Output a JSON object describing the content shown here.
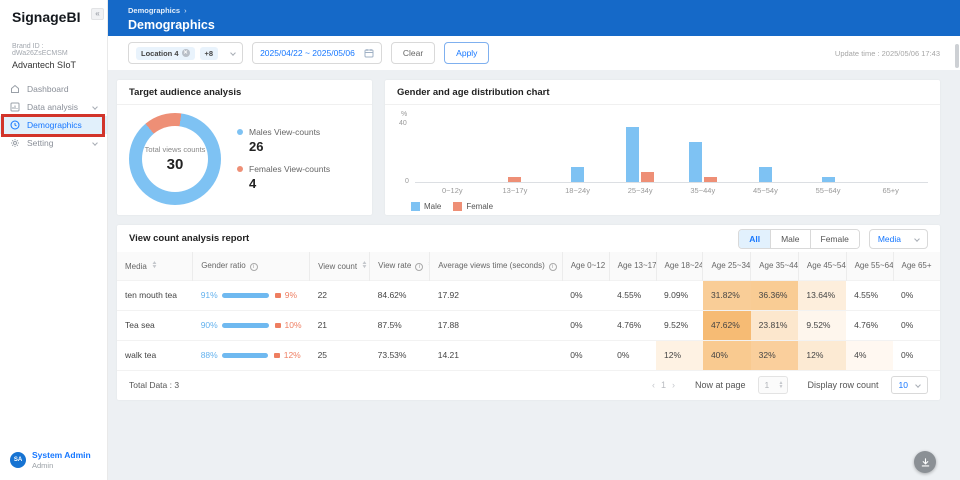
{
  "colors": {
    "header_blue": "#1569c8",
    "link_blue": "#1677ff",
    "male": "#7ec2f3",
    "female": "#ee8f76",
    "annotation_red": "#d2342a"
  },
  "sidebar": {
    "app_title": "SignageBI",
    "collapse_glyph": "«",
    "brand_id": "Brand ID : dWa26ZsECMSM",
    "brand_name": "Advantech SIoT",
    "items": [
      {
        "label": "Dashboard"
      },
      {
        "label": "Data analysis"
      },
      {
        "label": "Demographics"
      },
      {
        "label": "Setting"
      }
    ],
    "user": {
      "initials": "SA",
      "name": "System Admin",
      "role": "Admin"
    }
  },
  "header": {
    "breadcrumb": "Demographics",
    "breadcrumb_sep": "›",
    "title": "Demographics"
  },
  "filters": {
    "location_tag": "Location 4",
    "more_tag": "+8",
    "date_range": "2025/04/22 ~ 2025/05/06",
    "clear_label": "Clear",
    "apply_label": "Apply",
    "update_time": "Update time : 2025/05/06 17:43"
  },
  "audience_card": {
    "title": "Target audience analysis",
    "donut": {
      "center_label": "Total views counts",
      "total": "30",
      "male_pct": 86.7,
      "female_pct": 13.3
    },
    "legend": [
      {
        "label": "Males View-counts",
        "value": "26",
        "color": "#7ec2f3"
      },
      {
        "label": "Females View-counts",
        "value": "4",
        "color": "#ee8f76"
      }
    ]
  },
  "chart_card": {
    "title": "Gender and age distribution chart"
  },
  "chart_data": {
    "type": "bar",
    "title": "Gender and age distribution chart",
    "categories": [
      "0~12y",
      "13~17y",
      "18~24y",
      "25~34y",
      "35~44y",
      "45~54y",
      "55~64y",
      "65+y"
    ],
    "series": [
      {
        "name": "Male",
        "color": "#7ec2f3",
        "values": [
          0,
          0,
          10,
          36.7,
          26.7,
          10,
          3.3,
          0
        ]
      },
      {
        "name": "Female",
        "color": "#ee8f76",
        "values": [
          0,
          3.3,
          0,
          6.7,
          3.3,
          0,
          0,
          0
        ]
      }
    ],
    "ylabel": "%",
    "ylim": [
      0,
      40
    ],
    "yticks": [
      0,
      40
    ],
    "grid": false,
    "legend_position": "bottom-left"
  },
  "report_card": {
    "title": "View count analysis report",
    "segments": [
      "All",
      "Male",
      "Female"
    ],
    "active_segment": "All",
    "media_filter_label": "Media",
    "table": {
      "headers": [
        {
          "label": "Media",
          "sort": true,
          "info": false
        },
        {
          "label": "Gender ratio",
          "sort": false,
          "info": true
        },
        {
          "label": "View count",
          "sort": true,
          "info": false
        },
        {
          "label": "View rate",
          "sort": true,
          "info": true
        },
        {
          "label": "Average views time (seconds)",
          "sort": true,
          "info": true
        },
        {
          "label": "Age 0~12",
          "sort": false,
          "info": false
        },
        {
          "label": "Age 13~17",
          "sort": false,
          "info": false
        },
        {
          "label": "Age 18~24",
          "sort": false,
          "info": false
        },
        {
          "label": "Age 25~34",
          "sort": false,
          "info": false
        },
        {
          "label": "Age 35~44",
          "sort": false,
          "info": false
        },
        {
          "label": "Age 45~54",
          "sort": false,
          "info": false
        },
        {
          "label": "Age 55~64",
          "sort": false,
          "info": false
        },
        {
          "label": "Age 65+",
          "sort": false,
          "info": false
        }
      ],
      "rows": [
        {
          "media": "ten mouth tea",
          "male_pct": "91%",
          "female_pct": "9%",
          "male_ratio": 91,
          "view_count": "22",
          "view_rate": "84.62%",
          "avg_time": "17.92",
          "ages": [
            {
              "v": "0%",
              "bg": ""
            },
            {
              "v": "4.55%",
              "bg": ""
            },
            {
              "v": "9.09%",
              "bg": ""
            },
            {
              "v": "31.82%",
              "bg": "#f9cd97"
            },
            {
              "v": "36.36%",
              "bg": "#f9cc94"
            },
            {
              "v": "13.64%",
              "bg": "#fdeedc"
            },
            {
              "v": "4.55%",
              "bg": ""
            },
            {
              "v": "0%",
              "bg": ""
            }
          ]
        },
        {
          "media": "Tea sea",
          "male_pct": "90%",
          "female_pct": "10%",
          "male_ratio": 90,
          "view_count": "21",
          "view_rate": "87.5%",
          "avg_time": "17.88",
          "ages": [
            {
              "v": "0%",
              "bg": ""
            },
            {
              "v": "4.76%",
              "bg": ""
            },
            {
              "v": "9.52%",
              "bg": ""
            },
            {
              "v": "47.62%",
              "bg": "#f6bb74"
            },
            {
              "v": "23.81%",
              "bg": "#fce7cd"
            },
            {
              "v": "9.52%",
              "bg": "#fef6ed"
            },
            {
              "v": "4.76%",
              "bg": ""
            },
            {
              "v": "0%",
              "bg": ""
            }
          ]
        },
        {
          "media": "walk tea",
          "male_pct": "88%",
          "female_pct": "12%",
          "male_ratio": 88,
          "view_count": "25",
          "view_rate": "73.53%",
          "avg_time": "14.21",
          "ages": [
            {
              "v": "0%",
              "bg": ""
            },
            {
              "v": "0%",
              "bg": ""
            },
            {
              "v": "12%",
              "bg": "#fef2e3"
            },
            {
              "v": "40%",
              "bg": "#f9ca90"
            },
            {
              "v": "32%",
              "bg": "#facf9c"
            },
            {
              "v": "12%",
              "bg": "#fcead3"
            },
            {
              "v": "4%",
              "bg": "#fff8f1"
            },
            {
              "v": "0%",
              "bg": ""
            }
          ]
        }
      ]
    },
    "footer": {
      "total_label": "Total Data : 3",
      "prev_glyph": "‹",
      "page_number": "1",
      "next_glyph": "›",
      "now_at_page_label": "Now at page",
      "page_value": "1",
      "display_row_label": "Display row count",
      "row_count": "10"
    }
  }
}
